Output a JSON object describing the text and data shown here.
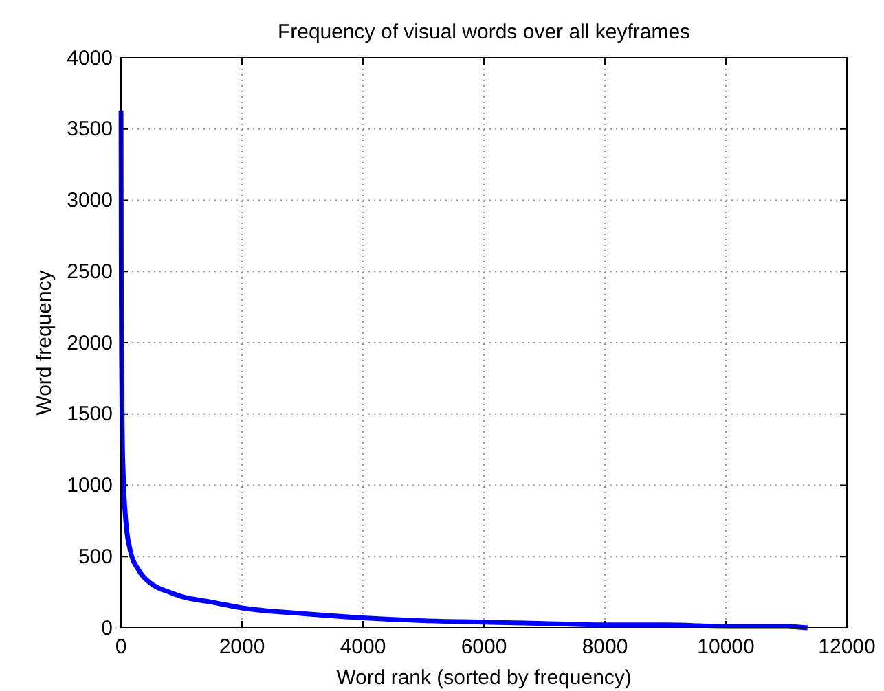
{
  "chart_data": {
    "type": "line",
    "title": "Frequency of visual words over all keyframes",
    "xlabel": "Word rank (sorted by frequency)",
    "ylabel": "Word frequency",
    "x": [
      1,
      5,
      10,
      20,
      40,
      80,
      150,
      300,
      500,
      800,
      1000,
      1500,
      2000,
      3000,
      4000,
      5000,
      6000,
      7000,
      8000,
      9000,
      10000,
      11000,
      11350
    ],
    "series": [
      {
        "color": "#0000ff",
        "values": [
          3630,
          2500,
          1900,
          1400,
          1050,
          750,
          550,
          400,
          310,
          250,
          220,
          180,
          140,
          100,
          70,
          50,
          40,
          30,
          20,
          20,
          10,
          10,
          0
        ]
      }
    ],
    "xlim": [
      0,
      12000
    ],
    "xticks": [
      0,
      2000,
      4000,
      6000,
      8000,
      10000,
      12000
    ],
    "ylim": [
      0,
      4000
    ],
    "yticks": [
      0,
      500,
      1000,
      1500,
      2000,
      2500,
      3000,
      3500,
      4000
    ],
    "grid": true,
    "marker": "none",
    "line_style": "solid"
  }
}
